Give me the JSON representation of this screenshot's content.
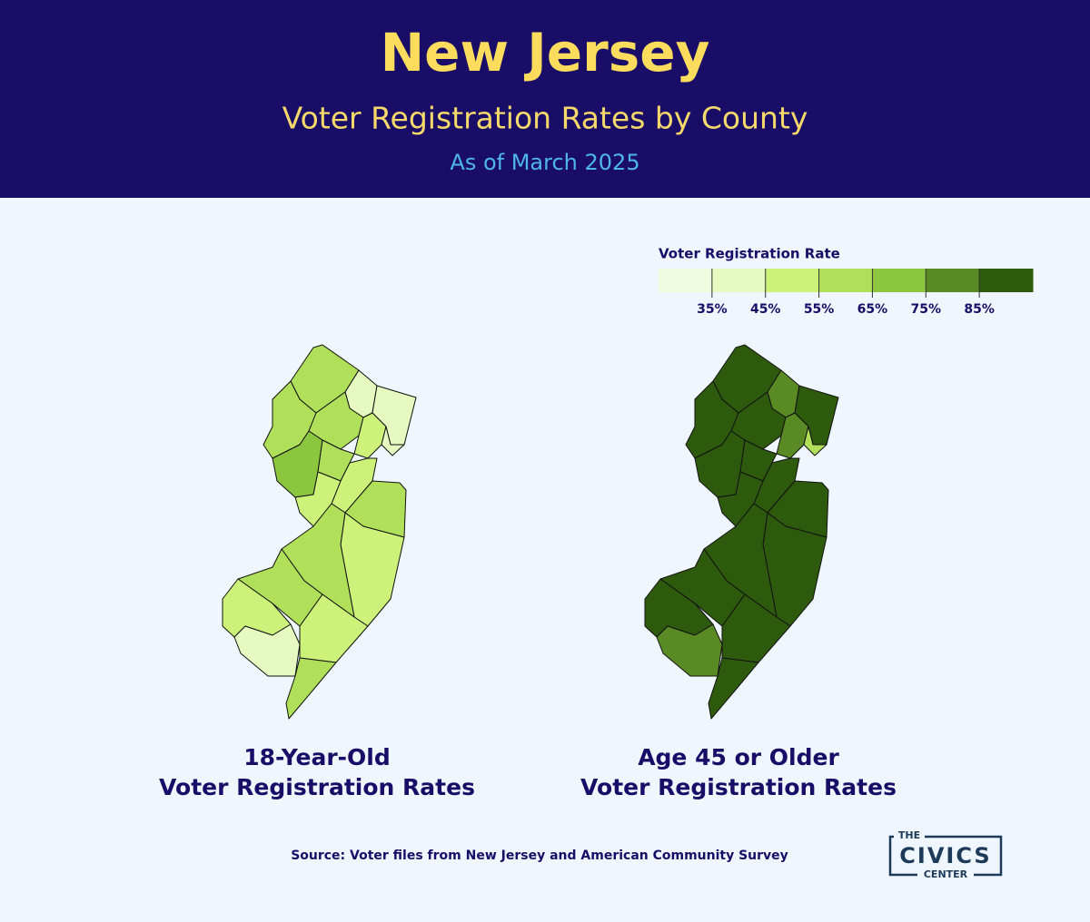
{
  "header": {
    "title": "New Jersey",
    "subtitle": "Voter Registration Rates by County",
    "date": "As of March 2025"
  },
  "legend": {
    "title": "Voter Registration Rate",
    "ticks": [
      "35%",
      "45%",
      "55%",
      "65%",
      "75%",
      "85%"
    ],
    "colors": [
      "#f1fbe0",
      "#e6f9c0",
      "#cdf27a",
      "#b0e05a",
      "#8cc63f",
      "#5a8a24",
      "#2e5a0e"
    ]
  },
  "maps": [
    {
      "caption": [
        "18-Year-Old",
        "Voter Registration Rates"
      ],
      "county_colors": [
        "#b0e05a",
        "#e6f9c0",
        "#e6f9c0",
        "#b0e05a",
        "#b0e05a",
        "#cdf27a",
        "#e6f9c0",
        "#8cc63f",
        "#b0e05a",
        "#cdf27a",
        "#cdf27a",
        "#b0e05a",
        "#cdf27a",
        "#b0e05a",
        "#b0e05a",
        "#cdf27a",
        "#e6f9c0",
        "#cdf27a",
        "#b0e05a"
      ]
    },
    {
      "caption": [
        "Age 45 or Older",
        "Voter Registration Rates"
      ],
      "county_colors": [
        "#2e5a0e",
        "#5a8a24",
        "#2e5a0e",
        "#2e5a0e",
        "#2e5a0e",
        "#5a8a24",
        "#b0e05a",
        "#2e5a0e",
        "#2e5a0e",
        "#2e5a0e",
        "#2e5a0e",
        "#2e5a0e",
        "#2e5a0e",
        "#2e5a0e",
        "#2e5a0e",
        "#2e5a0e",
        "#5a8a24",
        "#2e5a0e",
        "#2e5a0e"
      ]
    }
  ],
  "source": "Source: Voter files from New Jersey and American Community Survey",
  "logo": {
    "top": "THE",
    "main": "CIVICS",
    "bottom": "CENTER"
  }
}
